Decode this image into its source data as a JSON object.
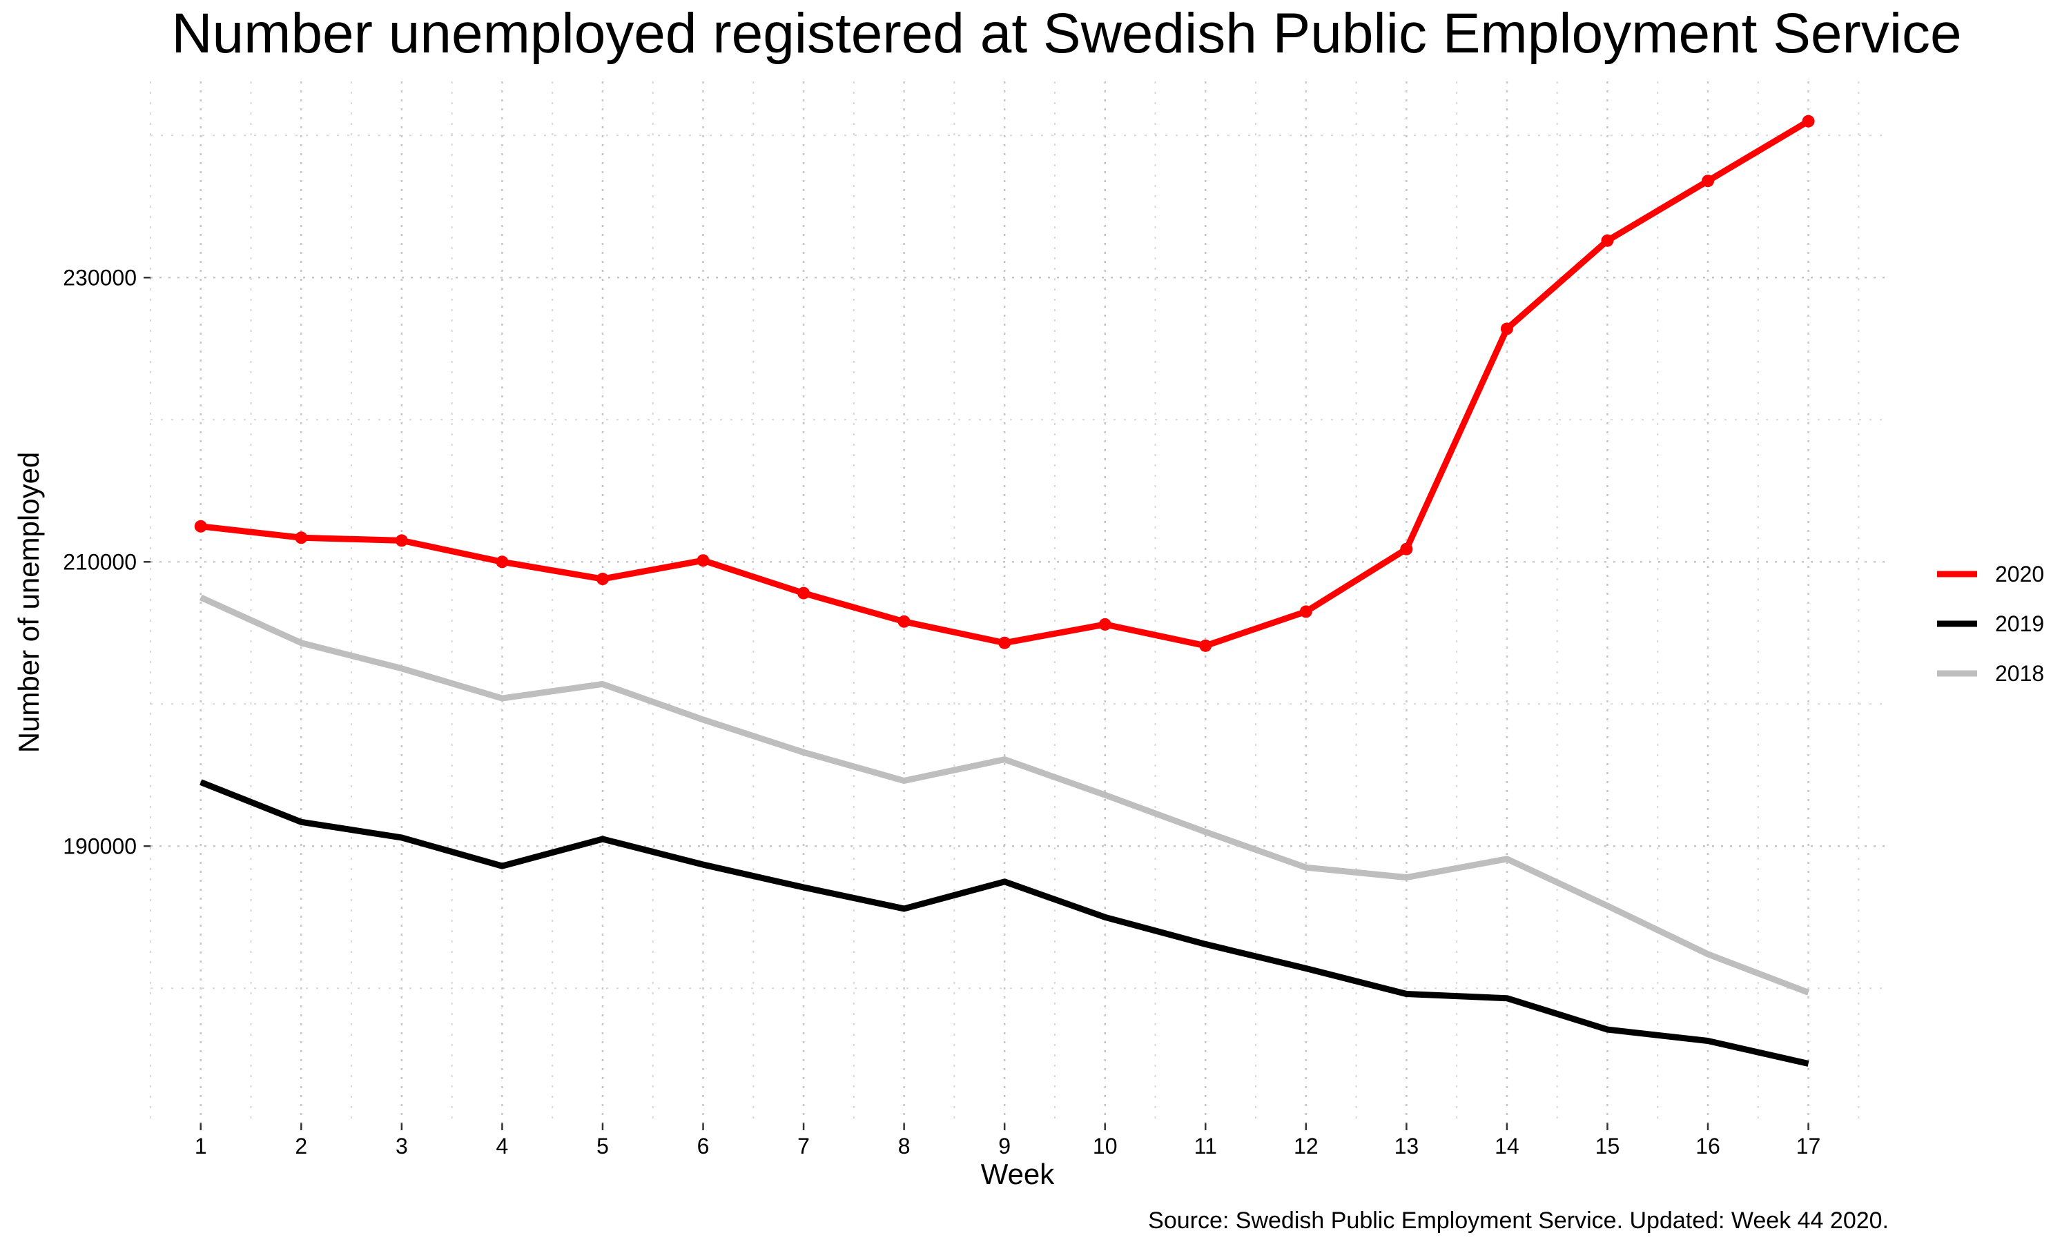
{
  "chart_data": {
    "type": "line",
    "title": "Number unemployed registered at Swedish Public Employment Service",
    "xlabel": "Week",
    "ylabel": "Number of unemployed",
    "caption": "Source: Swedish Public Employment Service. Updated: Week 44 2020.",
    "x": [
      1,
      2,
      3,
      4,
      5,
      6,
      7,
      8,
      9,
      10,
      11,
      12,
      13,
      14,
      15,
      16,
      17
    ],
    "xticks": [
      "1",
      "2",
      "3",
      "4",
      "5",
      "6",
      "7",
      "8",
      "9",
      "10",
      "11",
      "12",
      "13",
      "14",
      "15",
      "16",
      "17"
    ],
    "yticks": [
      190000,
      210000,
      230000
    ],
    "ytick_labels": [
      "190000",
      "210000",
      "230000"
    ],
    "xlim": [
      0.5,
      17.8
    ],
    "ylim": [
      170500,
      243800
    ],
    "grid": true,
    "legend_position": "right",
    "series": [
      {
        "name": "2020",
        "color": "#ff0000",
        "markers": true,
        "values": [
          212500,
          211700,
          211500,
          210000,
          208800,
          210100,
          207800,
          205800,
          204300,
          205600,
          204100,
          206500,
          210900,
          226400,
          232600,
          236800,
          241000
        ]
      },
      {
        "name": "2019",
        "color": "#000000",
        "markers": false,
        "values": [
          194500,
          191700,
          190600,
          188600,
          190500,
          188700,
          187100,
          185600,
          187500,
          185000,
          183100,
          181400,
          179600,
          179300,
          177100,
          176300,
          174700
        ]
      },
      {
        "name": "2018",
        "color": "#bebebe",
        "markers": false,
        "values": [
          207500,
          204300,
          202500,
          200400,
          201400,
          198900,
          196600,
          194600,
          196100,
          193600,
          191000,
          188500,
          187800,
          189100,
          185800,
          182400,
          179700
        ]
      }
    ]
  }
}
